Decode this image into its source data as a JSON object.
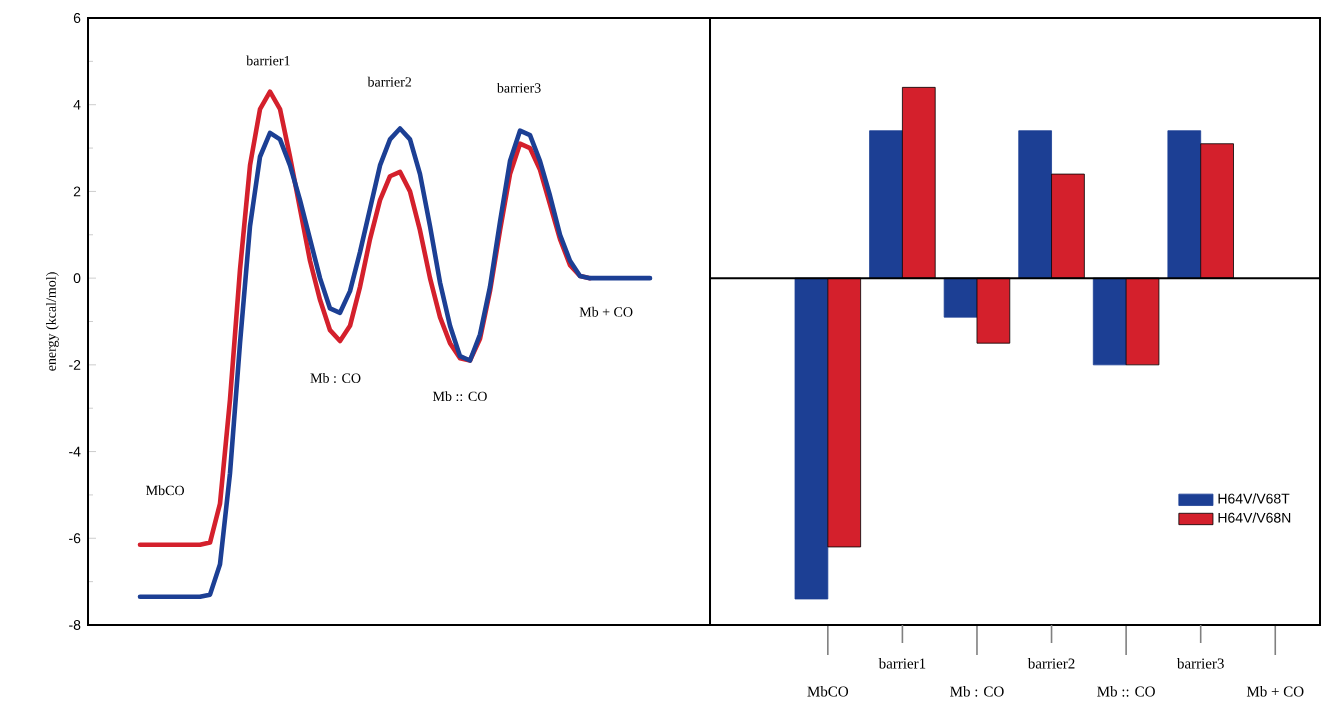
{
  "chart_data": [
    {
      "type": "line",
      "ylabel": "energy (kcal/mol)",
      "categories": [
        null,
        null,
        null,
        null,
        null,
        null,
        null,
        null,
        null,
        null,
        null,
        null,
        null,
        null,
        null,
        null,
        null,
        null,
        null,
        null,
        null,
        null,
        null,
        null,
        null,
        null,
        null,
        null,
        null,
        null,
        null,
        null,
        null,
        null,
        null,
        null,
        null,
        null,
        null,
        null,
        null,
        null,
        null,
        null,
        null,
        null,
        null,
        null,
        null,
        null,
        null,
        null
      ],
      "series": [
        {
          "color": "#d4202c",
          "values": [
            -6.15,
            -6.15,
            -6.15,
            -6.15,
            -6.15,
            -6.15,
            -6.15,
            -6.1,
            -5.2,
            -2.8,
            0.2,
            2.6,
            3.9,
            4.3,
            3.9,
            2.8,
            1.6,
            0.4,
            -0.5,
            -1.2,
            -1.45,
            -1.1,
            -0.2,
            0.9,
            1.8,
            2.35,
            2.45,
            2.0,
            1.1,
            0.0,
            -0.9,
            -1.5,
            -1.85,
            -1.9,
            -1.4,
            -0.3,
            1.1,
            2.4,
            3.1,
            3.0,
            2.5,
            1.7,
            0.9,
            0.3,
            0.05,
            0,
            null,
            null,
            null,
            null,
            null,
            null
          ]
        },
        {
          "color": "#1c3f94",
          "values": [
            -7.35,
            -7.35,
            -7.35,
            -7.35,
            -7.35,
            -7.35,
            -7.35,
            -7.3,
            -6.6,
            -4.5,
            -1.5,
            1.2,
            2.8,
            3.35,
            3.2,
            2.6,
            1.8,
            0.9,
            0.0,
            -0.7,
            -0.8,
            -0.3,
            0.6,
            1.6,
            2.6,
            3.2,
            3.45,
            3.2,
            2.4,
            1.2,
            -0.1,
            -1.1,
            -1.8,
            -1.9,
            -1.3,
            -0.2,
            1.3,
            2.7,
            3.4,
            3.3,
            2.7,
            1.9,
            1.0,
            0.4,
            0.05,
            0,
            0,
            0,
            0,
            0,
            0,
            0
          ]
        }
      ],
      "ylim": [
        -8,
        6
      ],
      "yticks": [
        -8,
        -6,
        -4,
        -2,
        0,
        2,
        4,
        6
      ],
      "tick_labels": "y",
      "annotations": [
        "barrier1",
        "barrier2",
        "barrier3",
        "MbCO",
        "Mb : CO",
        "Mb :: CO",
        "Mb + CO"
      ]
    },
    {
      "type": "bar",
      "categories": [
        "MbCO",
        "barrier1",
        "Mb : CO",
        "barrier2",
        "Mb :: CO",
        "barrier3",
        "Mb + CO"
      ],
      "series": [
        {
          "name": "H64V/V68T",
          "color": "#1c3f94",
          "values": [
            -7.4,
            3.4,
            -0.9,
            3.4,
            -2.0,
            3.4,
            null
          ]
        },
        {
          "name": "H64V/V68N",
          "color": "#d4202c",
          "values": [
            -6.2,
            4.4,
            -1.5,
            2.4,
            -2.0,
            3.1,
            null
          ]
        }
      ],
      "ylim": [
        -8,
        6
      ],
      "tick_labels": "x",
      "legend": "bottom right"
    }
  ]
}
